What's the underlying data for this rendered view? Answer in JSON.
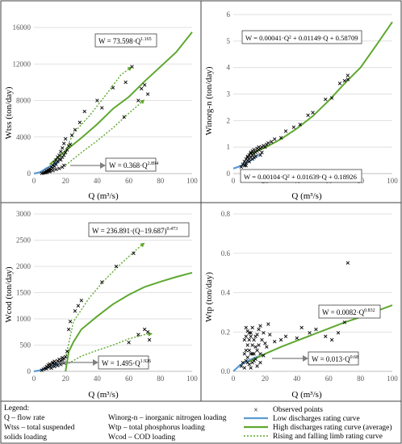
{
  "colors": {
    "low": "#5b9bd5",
    "high": "#5ea82f",
    "limb": "#5ea82f",
    "points": "#000000",
    "grid": "#d9d9d9",
    "frame": "#404040",
    "arrow": "#7f7f7f"
  },
  "chart_data": [
    {
      "type": "scatter",
      "xlabel": "Q (m³/s)",
      "ylabel": "Wtss (ton/day)",
      "xlim": [
        0,
        100
      ],
      "ylim": [
        0,
        16000
      ],
      "x_ticks": [
        "0",
        "20",
        "40",
        "60",
        "80",
        "100"
      ],
      "y_ticks": [
        "0",
        "4000",
        "8000",
        "12000",
        "16000"
      ],
      "grid": "horizontal",
      "annotations": [
        {
          "equation": "W = 73.598·Q",
          "exponent": "1.165"
        },
        {
          "equation": "W = 0.368·Q",
          "exponent": "2.894"
        }
      ],
      "observed_points": [
        [
          5,
          30
        ],
        [
          6,
          60
        ],
        [
          7,
          100
        ],
        [
          7,
          150
        ],
        [
          8,
          180
        ],
        [
          8,
          300
        ],
        [
          9,
          250
        ],
        [
          9,
          400
        ],
        [
          10,
          350
        ],
        [
          10,
          500
        ],
        [
          11,
          450
        ],
        [
          11,
          700
        ],
        [
          12,
          600
        ],
        [
          12,
          900
        ],
        [
          13,
          800
        ],
        [
          13,
          1200
        ],
        [
          14,
          1000
        ],
        [
          14,
          1500
        ],
        [
          15,
          1300
        ],
        [
          15,
          1800
        ],
        [
          16,
          1600
        ],
        [
          16,
          2000
        ],
        [
          17,
          1500
        ],
        [
          17,
          2400
        ],
        [
          18,
          1800
        ],
        [
          18,
          2800
        ],
        [
          19,
          2000
        ],
        [
          19,
          3300
        ],
        [
          20,
          2300
        ],
        [
          20,
          3800
        ],
        [
          21,
          2600
        ],
        [
          22,
          3000
        ],
        [
          23,
          3200
        ],
        [
          24,
          4200
        ],
        [
          26,
          4800
        ],
        [
          29,
          5600
        ],
        [
          32,
          6800
        ],
        [
          40,
          8000
        ],
        [
          43,
          7200
        ],
        [
          50,
          9400
        ],
        [
          57,
          6200
        ],
        [
          58,
          10000
        ],
        [
          62,
          11700
        ],
        [
          66,
          8000
        ],
        [
          68,
          9300
        ],
        [
          70,
          9700
        ],
        [
          72,
          8700
        ],
        [
          8,
          120
        ],
        [
          10,
          220
        ],
        [
          12,
          320
        ],
        [
          14,
          450
        ],
        [
          16,
          560
        ],
        [
          18,
          700
        ],
        [
          19,
          900
        ]
      ],
      "series": [
        {
          "kind": "low",
          "x": [
            0,
            4,
            8,
            12,
            16
          ],
          "y": [
            0,
            150,
            600,
            900,
            1400
          ]
        },
        {
          "kind": "high",
          "x": [
            10,
            20,
            30,
            40,
            50,
            60,
            70,
            80,
            90,
            100
          ],
          "y": [
            1000,
            2500,
            3900,
            5400,
            7100,
            8400,
            10100,
            11700,
            13300,
            15500
          ]
        },
        {
          "kind": "limb",
          "x": [
            18,
            25,
            35,
            45,
            55,
            62
          ],
          "y": [
            1800,
            4400,
            6300,
            8500,
            10800,
            11700
          ]
        },
        {
          "kind": "limb",
          "x": [
            20,
            30,
            40,
            50,
            60,
            70
          ],
          "y": [
            900,
            2300,
            3600,
            5000,
            6600,
            8100
          ]
        }
      ]
    },
    {
      "type": "scatter",
      "xlabel": "Q (m³/s)",
      "ylabel": "Winorg-n (ton/day)",
      "xlim": [
        0,
        100
      ],
      "ylim": [
        0,
        6
      ],
      "x_ticks": [
        "0",
        "20",
        "40",
        "60",
        "80",
        "100"
      ],
      "y_ticks": [
        "0",
        "1",
        "2",
        "3",
        "4",
        "5",
        "6"
      ],
      "grid": "horizontal",
      "annotations": [
        {
          "equation": "W = 0.00041·Q² + 0.01149·Q + 0.58709",
          "exponent": ""
        },
        {
          "equation": "W = 0.00104·Q² + 0.01639·Q + 0.18926",
          "exponent": ""
        }
      ],
      "observed_points": [
        [
          5,
          0.25
        ],
        [
          6,
          0.35
        ],
        [
          7,
          0.3
        ],
        [
          7,
          0.45
        ],
        [
          8,
          0.4
        ],
        [
          8,
          0.55
        ],
        [
          9,
          0.5
        ],
        [
          9,
          0.65
        ],
        [
          10,
          0.55
        ],
        [
          10,
          0.7
        ],
        [
          11,
          0.6
        ],
        [
          11,
          0.8
        ],
        [
          12,
          0.7
        ],
        [
          12,
          0.85
        ],
        [
          13,
          0.75
        ],
        [
          13,
          0.9
        ],
        [
          14,
          0.8
        ],
        [
          15,
          0.85
        ],
        [
          15,
          0.95
        ],
        [
          16,
          0.9
        ],
        [
          16,
          1.0
        ],
        [
          17,
          0.95
        ],
        [
          18,
          1.0
        ],
        [
          18,
          0.8
        ],
        [
          19,
          1.05
        ],
        [
          20,
          1.0
        ],
        [
          21,
          1.1
        ],
        [
          22,
          1.15
        ],
        [
          24,
          1.2
        ],
        [
          26,
          1.3
        ],
        [
          30,
          1.35
        ],
        [
          33,
          1.6
        ],
        [
          38,
          1.75
        ],
        [
          42,
          1.85
        ],
        [
          47,
          2.2
        ],
        [
          50,
          2.3
        ],
        [
          58,
          2.8
        ],
        [
          62,
          2.85
        ],
        [
          67,
          3.4
        ],
        [
          70,
          3.5
        ],
        [
          72,
          3.7
        ],
        [
          72,
          3.55
        ],
        [
          8,
          0.3
        ],
        [
          10,
          0.45
        ],
        [
          12,
          0.55
        ],
        [
          14,
          0.65
        ],
        [
          9,
          0.6
        ],
        [
          11,
          0.75
        ],
        [
          13,
          0.6
        ],
        [
          17,
          0.7
        ]
      ],
      "series": [
        {
          "kind": "low",
          "x": [
            0,
            4,
            8,
            12,
            16
          ],
          "y": [
            0.19,
            0.27,
            0.39,
            0.53,
            0.72
          ]
        },
        {
          "kind": "high",
          "x": [
            10,
            20,
            30,
            40,
            50,
            60,
            70,
            80,
            90,
            100
          ],
          "y": [
            0.74,
            0.98,
            1.3,
            1.7,
            2.17,
            2.75,
            3.4,
            4.0,
            4.85,
            5.72
          ]
        }
      ]
    },
    {
      "type": "scatter",
      "xlabel": "Q (m³/s)",
      "ylabel": "Wcod (ton/day)",
      "xlim": [
        0,
        100
      ],
      "ylim": [
        0,
        3000
      ],
      "x_ticks": [
        "0",
        "20",
        "40",
        "60",
        "80",
        "100"
      ],
      "y_ticks": [
        "0",
        "500",
        "1000",
        "1500",
        "2000",
        "2500",
        "3000"
      ],
      "grid": "horizontal",
      "annotations": [
        {
          "equation": "W = 236.891·(Q−19.687)",
          "exponent": "0.473"
        },
        {
          "equation": "W = 1.495·Q",
          "exponent": "1.926"
        }
      ],
      "observed_points": [
        [
          5,
          20
        ],
        [
          6,
          40
        ],
        [
          7,
          60
        ],
        [
          8,
          50
        ],
        [
          8,
          90
        ],
        [
          9,
          80
        ],
        [
          9,
          120
        ],
        [
          10,
          100
        ],
        [
          10,
          140
        ],
        [
          11,
          120
        ],
        [
          12,
          150
        ],
        [
          12,
          170
        ],
        [
          13,
          140
        ],
        [
          13,
          190
        ],
        [
          14,
          160
        ],
        [
          15,
          200
        ],
        [
          16,
          180
        ],
        [
          16,
          230
        ],
        [
          17,
          200
        ],
        [
          18,
          220
        ],
        [
          18,
          260
        ],
        [
          19,
          240
        ],
        [
          20,
          280
        ],
        [
          21,
          380
        ],
        [
          22,
          800
        ],
        [
          23,
          950
        ],
        [
          26,
          1150
        ],
        [
          28,
          1250
        ],
        [
          30,
          1350
        ],
        [
          43,
          1700
        ],
        [
          52,
          2000
        ],
        [
          63,
          2250
        ],
        [
          60,
          550
        ],
        [
          66,
          700
        ],
        [
          70,
          800
        ],
        [
          72,
          750
        ],
        [
          73,
          600
        ],
        [
          11,
          60
        ],
        [
          13,
          90
        ],
        [
          15,
          110
        ],
        [
          17,
          130
        ],
        [
          19,
          160
        ]
      ],
      "series": [
        {
          "kind": "low",
          "x": [
            0,
            4,
            8,
            12,
            16
          ],
          "y": [
            0,
            20,
            60,
            100,
            150
          ]
        },
        {
          "kind": "high",
          "x": [
            20,
            22,
            25,
            30,
            40,
            50,
            60,
            70,
            80,
            90,
            100
          ],
          "y": [
            0,
            370,
            560,
            800,
            1050,
            1280,
            1460,
            1610,
            1710,
            1800,
            1880
          ]
        },
        {
          "kind": "limb",
          "x": [
            20,
            25,
            35,
            45,
            55,
            64,
            70
          ],
          "y": [
            250,
            950,
            1400,
            1750,
            2050,
            2300,
            2450
          ]
        },
        {
          "kind": "limb",
          "x": [
            20,
            30,
            40,
            50,
            60,
            70,
            75
          ],
          "y": [
            120,
            290,
            400,
            500,
            620,
            700,
            720
          ]
        }
      ]
    },
    {
      "type": "scatter",
      "xlabel": "Q (m³/s)",
      "ylabel": "Wtp (ton/day)",
      "xlim": [
        0,
        100
      ],
      "ylim": [
        0,
        0.9
      ],
      "x_ticks": [
        "0",
        "20",
        "40",
        "60",
        "80",
        "100"
      ],
      "y_ticks": [
        "0.0",
        "0.2",
        "0.4",
        "0.6",
        "0.8"
      ],
      "grid": "horizontal",
      "annotations": [
        {
          "equation": "W = 0.0082·Q",
          "exponent": "0.832"
        },
        {
          "equation": "W = 0.013·Q",
          "exponent": "0.68"
        }
      ],
      "observed_points": [
        [
          5,
          0.03
        ],
        [
          6,
          0.05
        ],
        [
          7,
          0.02
        ],
        [
          7,
          0.1
        ],
        [
          8,
          0.06
        ],
        [
          8,
          0.2
        ],
        [
          8,
          0.25
        ],
        [
          9,
          0.08
        ],
        [
          9,
          0.15
        ],
        [
          9,
          0.23
        ],
        [
          10,
          0.04
        ],
        [
          10,
          0.12
        ],
        [
          10,
          0.18
        ],
        [
          11,
          0.1
        ],
        [
          11,
          0.2
        ],
        [
          11,
          0.22
        ],
        [
          12,
          0.05
        ],
        [
          12,
          0.15
        ],
        [
          12,
          0.25
        ],
        [
          13,
          0.1
        ],
        [
          13,
          0.18
        ],
        [
          14,
          0.07
        ],
        [
          14,
          0.2
        ],
        [
          15,
          0.12
        ],
        [
          15,
          0.21
        ],
        [
          16,
          0.15
        ],
        [
          16,
          0.24
        ],
        [
          17,
          0.1
        ],
        [
          17,
          0.26
        ],
        [
          18,
          0.18
        ],
        [
          19,
          0.22
        ],
        [
          20,
          0.16
        ],
        [
          21,
          0.14
        ],
        [
          22,
          0.27
        ],
        [
          23,
          0.21
        ],
        [
          26,
          0.17
        ],
        [
          30,
          0.18
        ],
        [
          33,
          0.2
        ],
        [
          40,
          0.19
        ],
        [
          43,
          0.25
        ],
        [
          48,
          0.22
        ],
        [
          52,
          0.24
        ],
        [
          58,
          0.2
        ],
        [
          62,
          0.18
        ],
        [
          66,
          0.22
        ],
        [
          70,
          0.28
        ],
        [
          72,
          0.62
        ],
        [
          7,
          0.18
        ],
        [
          9,
          0.05
        ],
        [
          11,
          0.02
        ],
        [
          13,
          0.06
        ],
        [
          15,
          0.03
        ],
        [
          17,
          0.05
        ],
        [
          19,
          0.09
        ],
        [
          8,
          0.12
        ],
        [
          10,
          0.22
        ],
        [
          12,
          0.1
        ],
        [
          14,
          0.14
        ]
      ],
      "series": [
        {
          "kind": "low",
          "x": [
            0,
            4,
            8,
            12,
            16
          ],
          "y": [
            0,
            0.034,
            0.054,
            0.072,
            0.086
          ]
        },
        {
          "kind": "high",
          "x": [
            10,
            20,
            30,
            40,
            50,
            60,
            70,
            80,
            90,
            100
          ],
          "y": [
            0.056,
            0.1,
            0.14,
            0.175,
            0.21,
            0.245,
            0.28,
            0.31,
            0.345,
            0.378
          ]
        }
      ]
    }
  ],
  "legend": {
    "title": "Legend:",
    "abbreviations_left": [
      "Q – flow rate",
      "Wtss – total suspended",
      "solids loading"
    ],
    "abbreviations_middle": [
      "Winorg-n – inorganic nitrogen loading",
      "Wtp – total phosphorus loading",
      "Wcod – COD loading"
    ],
    "marker_symbol": "×",
    "entries": [
      "Observed points",
      "Low discharges rating curve",
      "High discharges rating curve (average)",
      "Rising and falling limb rating curve"
    ]
  }
}
